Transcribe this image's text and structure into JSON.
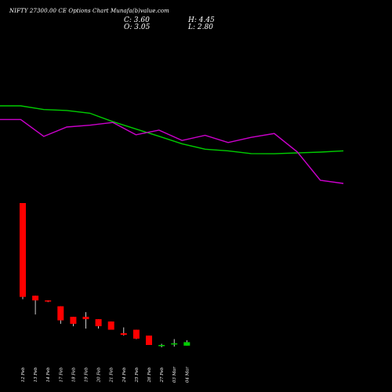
{
  "header": {
    "title": "NIFTY 27300.00  CE Options  Chart  Munafa",
    "title_suffix": "(b)",
    "title_rest": "value.com",
    "close_label": "C: 3.60",
    "open_label": "O: 3.05",
    "high_label": "H: 4.45",
    "low_label": "L: 2.80"
  },
  "chart_data": {
    "type": "candlestick",
    "background": "#000000",
    "colors": {
      "up": "#00cc00",
      "down": "#ff0000",
      "line_fast": "#cc00cc",
      "line_slow": "#00cc00"
    },
    "categories": [
      "12 Feb",
      "13 Feb",
      "14 Feb",
      "17 Feb",
      "18 Feb",
      "19 Feb",
      "20 Feb",
      "21 Feb",
      "24 Feb",
      "25 Feb",
      "26 Feb",
      "27 Feb",
      "03 Mar",
      "04 Mar"
    ],
    "x_tick_labels": [
      "12 Feb",
      "13 Feb",
      "14 Feb",
      "17 Feb",
      "18 Feb",
      "19 Feb",
      "20 Feb",
      "21 Feb",
      "24 Feb",
      "25 Feb",
      "26 Feb",
      "27 Feb",
      "03 Mar",
      "04 Mar"
    ],
    "ohlc": [
      {
        "open": 59.0,
        "high": 59.0,
        "low": 18.0,
        "close": 19.0
      },
      {
        "open": 19.5,
        "high": 19.5,
        "low": 11.5,
        "close": 17.5
      },
      {
        "open": 17.5,
        "high": 17.5,
        "low": 16.8,
        "close": 17.0
      },
      {
        "open": 15.0,
        "high": 15.0,
        "low": 7.5,
        "close": 9.0
      },
      {
        "open": 10.5,
        "high": 10.5,
        "low": 6.5,
        "close": 7.5
      },
      {
        "open": 10.5,
        "high": 12.5,
        "low": 5.5,
        "close": 9.5
      },
      {
        "open": 9.5,
        "high": 9.5,
        "low": 5.5,
        "close": 6.5
      },
      {
        "open": 8.5,
        "high": 8.5,
        "low": 5.5,
        "close": 5.0
      },
      {
        "open": 3.5,
        "high": 6.0,
        "low": 2.5,
        "close": 2.8
      },
      {
        "open": 5.0,
        "high": 5.0,
        "low": 1.0,
        "close": 1.2
      },
      {
        "open": 2.5,
        "high": 2.5,
        "low": -1.5,
        "close": -1.5
      },
      {
        "open": -2.0,
        "high": -1.0,
        "low": -2.5,
        "close": -1.5
      },
      {
        "open": -1.3,
        "high": 1.0,
        "low": -2.2,
        "close": -0.8
      },
      {
        "open": -1.8,
        "high": 0.5,
        "low": -1.8,
        "close": -0.3
      }
    ],
    "ma_fast": [
      69.4,
      69.4,
      60.2,
      65.3,
      66.3,
      67.8,
      61.1,
      63.6,
      58.0,
      60.8,
      56.9,
      59.7,
      61.8,
      51.8,
      36.4,
      34.7
    ],
    "ma_slow": [
      76.8,
      76.8,
      74.8,
      74.3,
      72.8,
      68.2,
      64.2,
      60.3,
      56.2,
      53.3,
      52.4,
      50.9,
      50.8,
      51.3,
      51.7,
      52.4
    ],
    "ma_x": [
      "",
      "12 Feb",
      "13 Feb",
      "14 Feb",
      "17 Feb",
      "18 Feb",
      "19 Feb",
      "20 Feb",
      "21 Feb",
      "24 Feb",
      "25 Feb",
      "26 Feb",
      "27 Feb",
      "03 Mar",
      "04 Mar",
      ""
    ],
    "title": "",
    "xlabel": "",
    "ylabel": "",
    "grid": false,
    "legend": "none"
  }
}
